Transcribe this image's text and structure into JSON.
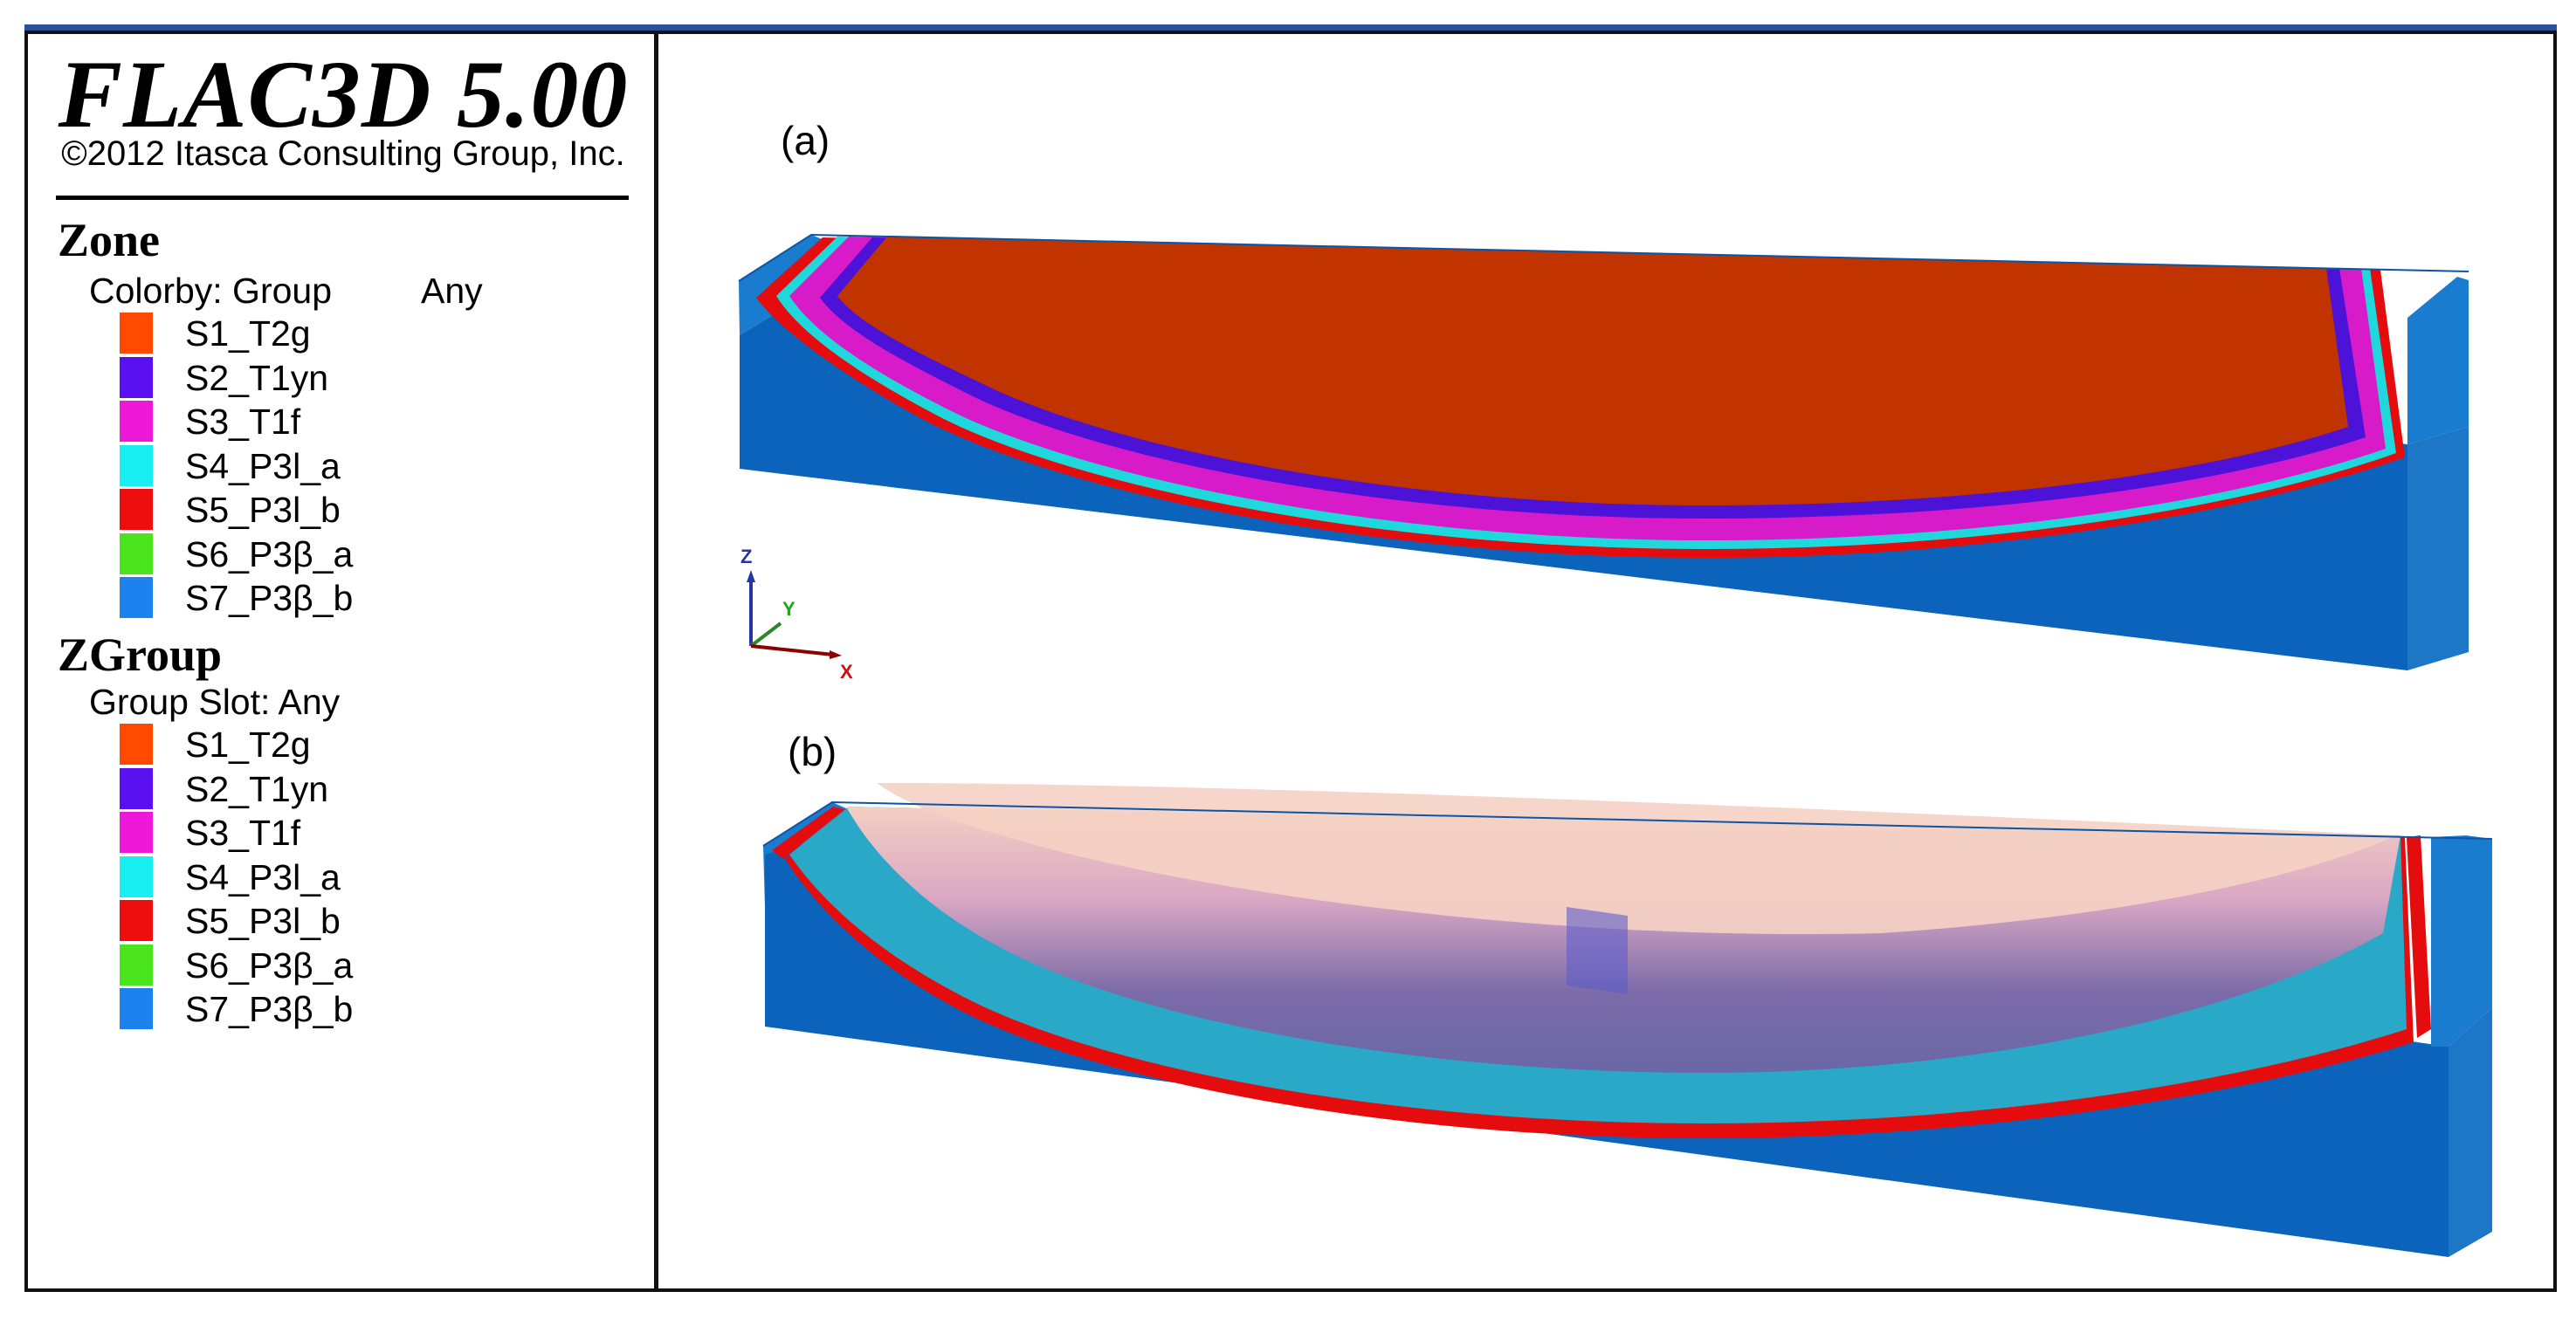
{
  "app": {
    "title": "FLAC3D 5.00",
    "copyright": "©2012 Itasca Consulting Group, Inc."
  },
  "zone_legend": {
    "title": "Zone",
    "colorby_label": "Colorby: Group",
    "colorby_value": "Any",
    "items": [
      {
        "label": "S1_T2g",
        "color": "#ff4a00"
      },
      {
        "label": "S2_T1yn",
        "color": "#5a10f0"
      },
      {
        "label": "S3_T1f",
        "color": "#ee18d8"
      },
      {
        "label": "S4_P3l_a",
        "color": "#19eef0"
      },
      {
        "label": "S5_P3l_b",
        "color": "#ee0e0e"
      },
      {
        "label": "S6_P3β_a",
        "color": "#49e41c"
      },
      {
        "label": "S7_P3β_b",
        "color": "#1b82ee"
      }
    ]
  },
  "zgroup_legend": {
    "title": "ZGroup",
    "slot_label": "Group Slot: Any",
    "items": [
      {
        "label": "S1_T2g",
        "color": "#ff4a00"
      },
      {
        "label": "S2_T1yn",
        "color": "#5a10f0"
      },
      {
        "label": "S3_T1f",
        "color": "#ee18d8"
      },
      {
        "label": "S4_P3l_a",
        "color": "#19eef0"
      },
      {
        "label": "S5_P3l_b",
        "color": "#ee0e0e"
      },
      {
        "label": "S6_P3β_a",
        "color": "#49e41c"
      },
      {
        "label": "S7_P3β_b",
        "color": "#1b82ee"
      }
    ]
  },
  "viewport": {
    "panel_a_label": "(a)",
    "panel_b_label": "(b)",
    "axis_z": "Z",
    "axis_y": "Y",
    "axis_x": "X"
  }
}
